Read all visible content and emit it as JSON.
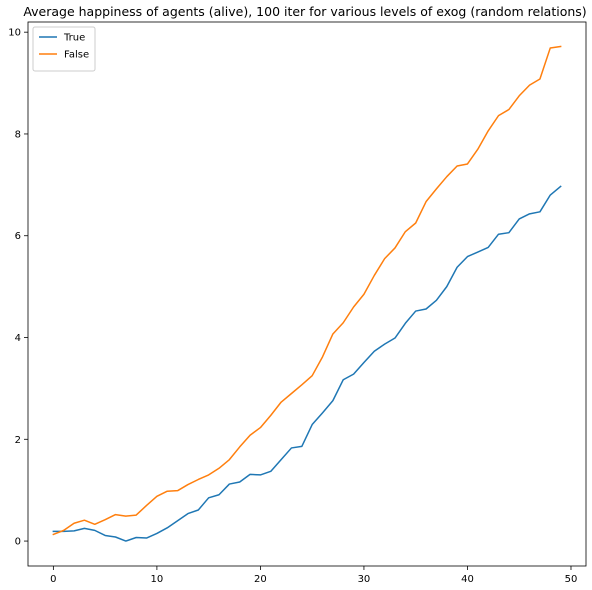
{
  "chart_data": {
    "type": "line",
    "title": "Average happiness of agents (alive), 100 iter for various levels of exog  (random relations)",
    "xlabel": "",
    "ylabel": "",
    "xlim": [
      -2.45,
      51.45
    ],
    "ylim": [
      -0.49,
      10.2
    ],
    "xticks": [
      0,
      10,
      20,
      30,
      40,
      50
    ],
    "yticks": [
      0,
      2,
      4,
      6,
      8,
      10
    ],
    "grid": false,
    "legend_position": "top-left",
    "x": [
      0,
      1,
      2,
      3,
      4,
      5,
      6,
      7,
      8,
      9,
      10,
      11,
      12,
      13,
      14,
      15,
      16,
      17,
      18,
      19,
      20,
      21,
      22,
      23,
      24,
      25,
      26,
      27,
      28,
      29,
      30,
      31,
      32,
      33,
      34,
      35,
      36,
      37,
      38,
      39,
      40,
      41,
      42,
      43,
      44,
      45,
      46,
      47,
      48,
      49
    ],
    "series": [
      {
        "name": "True",
        "color": "#1f77b4",
        "values": [
          0.19,
          0.19,
          0.2,
          0.25,
          0.21,
          0.11,
          0.08,
          0.0,
          0.07,
          0.06,
          0.15,
          0.26,
          0.4,
          0.54,
          0.61,
          0.85,
          0.91,
          1.12,
          1.16,
          1.31,
          1.3,
          1.37,
          1.6,
          1.83,
          1.86,
          2.29,
          2.52,
          2.76,
          3.17,
          3.28,
          3.51,
          3.73,
          3.87,
          3.99,
          4.28,
          4.52,
          4.56,
          4.73,
          5.0,
          5.38,
          5.59,
          5.68,
          5.77,
          6.03,
          6.06,
          6.33,
          6.43,
          6.47,
          6.8,
          6.97
        ]
      },
      {
        "name": "False",
        "color": "#ff7f0e",
        "values": [
          0.13,
          0.21,
          0.35,
          0.41,
          0.33,
          0.42,
          0.52,
          0.49,
          0.51,
          0.7,
          0.88,
          0.98,
          0.99,
          1.11,
          1.21,
          1.3,
          1.43,
          1.6,
          1.85,
          2.08,
          2.23,
          2.47,
          2.73,
          2.9,
          3.07,
          3.25,
          3.62,
          4.07,
          4.29,
          4.6,
          4.85,
          5.22,
          5.55,
          5.76,
          6.08,
          6.25,
          6.67,
          6.92,
          7.16,
          7.37,
          7.41,
          7.7,
          8.06,
          8.36,
          8.48,
          8.75,
          8.96,
          9.08,
          9.69,
          9.72
        ]
      }
    ]
  }
}
